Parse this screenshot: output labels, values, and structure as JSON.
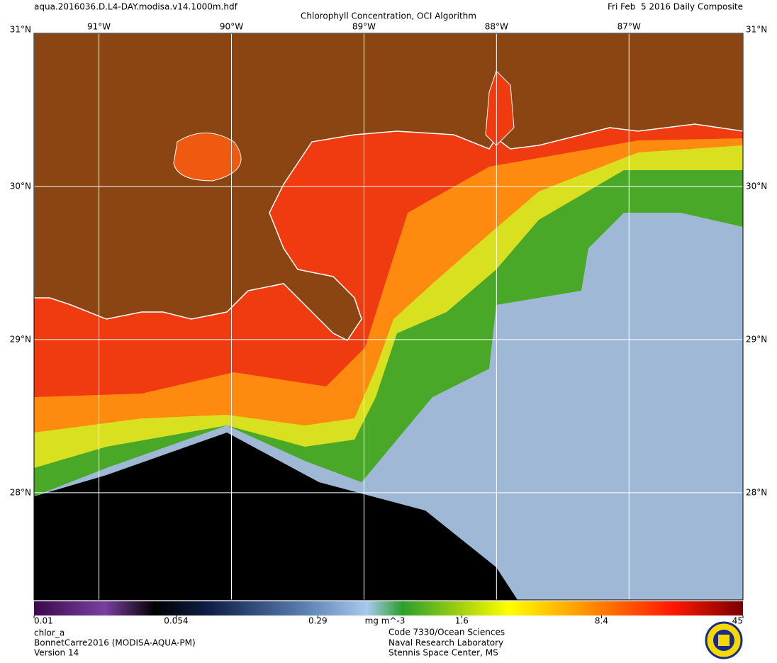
{
  "header": {
    "file": "aqua.2016036.D.L4-DAY.modisa.v14.1000m.hdf",
    "title": "Chlorophyll Concentration, OCI Algorithm",
    "date": "Fri Feb  5 2016 Daily Composite"
  },
  "map": {
    "lon_range": [
      -91.49,
      -86.14
    ],
    "lat_range": [
      27.3,
      31
    ],
    "lon_ticks": [
      {
        "value": -91,
        "label": "91°W"
      },
      {
        "value": -90,
        "label": "90°W"
      },
      {
        "value": -89,
        "label": "89°W"
      },
      {
        "value": -88,
        "label": "88°W"
      },
      {
        "value": -87,
        "label": "87°W"
      }
    ],
    "lat_ticks": [
      {
        "value": 31,
        "label": "31°N"
      },
      {
        "value": 30,
        "label": "30°N"
      },
      {
        "value": 29,
        "label": "29°N"
      },
      {
        "value": 28,
        "label": "28°N"
      }
    ]
  },
  "colorbar": {
    "range": [
      0.01,
      45
    ],
    "scale": "log",
    "ticks": [
      0.01,
      0.054,
      0.29,
      1.6,
      8.4,
      45
    ],
    "unit": "mg m^-3"
  },
  "footer": {
    "left": [
      "chlor_a",
      "BonnetCarre2016 (MODISA-AQUA-PM)",
      "Version 14"
    ],
    "right": [
      "Code 7330/Ocean Sciences",
      "Naval Research Laboratory",
      "Stennis Space Center, MS"
    ]
  }
}
